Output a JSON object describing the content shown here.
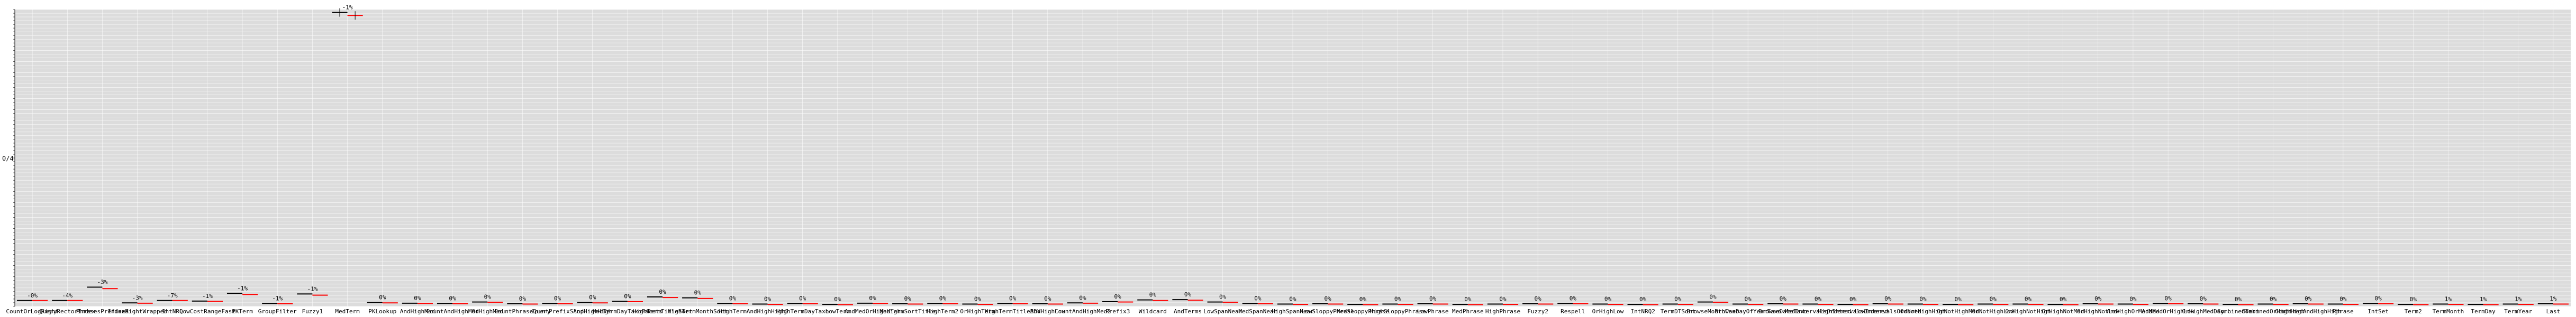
{
  "chart_data": {
    "type": "scatter",
    "title": "",
    "xlabel": "",
    "ylabel": "0/4",
    "ylim": [
      0,
      100
    ],
    "grid": true,
    "categories": [
      "CountOrLogRight",
      "QueryRectorIndex",
      "PhrasesPrefixed",
      "IndexRightWrapped",
      "IntNRQ",
      "LowCostRangeFast",
      "PKTerm",
      "GroupFilter",
      "Fuzzy1",
      "MedTerm",
      "PKLookup",
      "AndHighMed",
      "CountAndHighMed",
      "OrHighMed",
      "CountPhraseQuery",
      "CountPrefixSlop",
      "AndHighHigh",
      "MedTermDayTaxoFacets",
      "HighTermTitleSort",
      "HighTermMonthSort",
      "HighTerm",
      "AndHighHigh2",
      "HighTermDayTaxo",
      "LowTerm",
      "AndMedOrHighHigh",
      "MedTermSortTitle",
      "HighTerm2",
      "OrHighTerm",
      "HighTermTitleBDV",
      "AndHighLow",
      "CountAndHighMed2",
      "Prefix3",
      "Wildcard",
      "AndTerms",
      "LowSpanNear",
      "MedSpanNear",
      "HighSpanNear",
      "LowSloppyPhrase",
      "MedSloppyPhrase",
      "HighSloppyPhrase",
      "LowPhrase",
      "MedPhrase",
      "HighPhrase",
      "Fuzzy2",
      "Respell",
      "OrHighLow",
      "IntNRQ2",
      "TermDTSort",
      "BrowseMonthTaxo",
      "BrowseDayOfYearTaxo",
      "BrowseDateTaxo",
      "MedIntervalsOrdered",
      "HighIntervalsOrdered",
      "LowIntervalsOrdered",
      "OrNotHighHigh",
      "OrNotHighMed",
      "OrNotHighLow",
      "OrHighNotHigh",
      "OrHighNotMed",
      "OrHighNotLow",
      "AndHighOrMedMed",
      "AndMedOrHighLow",
      "OrHighMedDay",
      "CombinedTerm",
      "CombinedOrHighHigh",
      "CombinedAndHighHigh",
      "Phrase",
      "IntSet",
      "Term2",
      "TermMonth",
      "TermDay",
      "TermYear",
      "Last"
    ],
    "series": [
      {
        "values": [
          2.0,
          2.0,
          6.5,
          1.2,
          2.0,
          1.8,
          4.4,
          1.0,
          4.2,
          99.0,
          1.3,
          1.1,
          1.0,
          1.5,
          0.9,
          1.0,
          1.3,
          1.7,
          3.2,
          2.9,
          1.0,
          0.8,
          1.0,
          0.7,
          1.1,
          0.9,
          1.0,
          0.8,
          1.0,
          0.9,
          1.2,
          1.6,
          2.2,
          2.3,
          1.5,
          1.0,
          0.8,
          0.9,
          0.7,
          0.8,
          0.9,
          0.7,
          0.8,
          0.9,
          1.0,
          0.8,
          0.7,
          0.8,
          1.5,
          0.8,
          0.9,
          0.8,
          0.7,
          0.9,
          0.8,
          0.7,
          0.8,
          0.8,
          0.7,
          0.9,
          0.8,
          1.0,
          0.9,
          0.7,
          0.8,
          0.9,
          0.8,
          1.0,
          0.7,
          0.8,
          0.7,
          0.8,
          0.9
        ],
        "color": "#000000"
      },
      {
        "values": [
          2.0,
          2.0,
          6.0,
          1.1,
          2.0,
          1.7,
          4.0,
          0.9,
          3.8,
          98.0,
          1.2,
          1.0,
          0.9,
          1.4,
          0.8,
          0.9,
          1.2,
          1.6,
          3.0,
          2.7,
          0.9,
          0.7,
          0.9,
          0.6,
          1.0,
          0.8,
          0.9,
          0.7,
          0.9,
          0.8,
          1.1,
          1.5,
          2.0,
          2.1,
          1.4,
          0.9,
          0.7,
          0.8,
          0.6,
          0.7,
          0.8,
          0.6,
          0.7,
          0.8,
          0.9,
          0.7,
          0.6,
          0.7,
          1.4,
          0.7,
          0.8,
          0.7,
          0.6,
          0.8,
          0.7,
          0.6,
          0.7,
          0.7,
          0.6,
          0.8,
          0.7,
          0.9,
          0.8,
          0.6,
          0.7,
          0.8,
          0.7,
          0.9,
          0.6,
          0.7,
          0.6,
          0.7,
          0.8
        ],
        "color": "#ff0000"
      }
    ],
    "labels": [
      "-0%",
      "-4%",
      "-3%",
      "-3%",
      "-7%",
      "-1%",
      "-1%",
      "-1%",
      "-1%",
      "-1%",
      "0%",
      "0%",
      "0%",
      "0%",
      "0%",
      "0%",
      "0%",
      "0%",
      "0%",
      "0%",
      "0%",
      "0%",
      "0%",
      "0%",
      "0%",
      "0%",
      "0%",
      "0%",
      "0%",
      "0%",
      "0%",
      "0%",
      "0%",
      "0%",
      "0%",
      "0%",
      "0%",
      "0%",
      "0%",
      "0%",
      "0%",
      "0%",
      "0%",
      "0%",
      "0%",
      "0%",
      "0%",
      "0%",
      "0%",
      "0%",
      "0%",
      "0%",
      "0%",
      "0%",
      "0%",
      "0%",
      "0%",
      "0%",
      "0%",
      "0%",
      "0%",
      "0%",
      "0%",
      "0%",
      "0%",
      "0%",
      "0%",
      "0%",
      "0%",
      "1%",
      "1%",
      "1%",
      "1%"
    ],
    "label_colors": {
      "negative": "#000000",
      "positive": "#008000"
    }
  }
}
